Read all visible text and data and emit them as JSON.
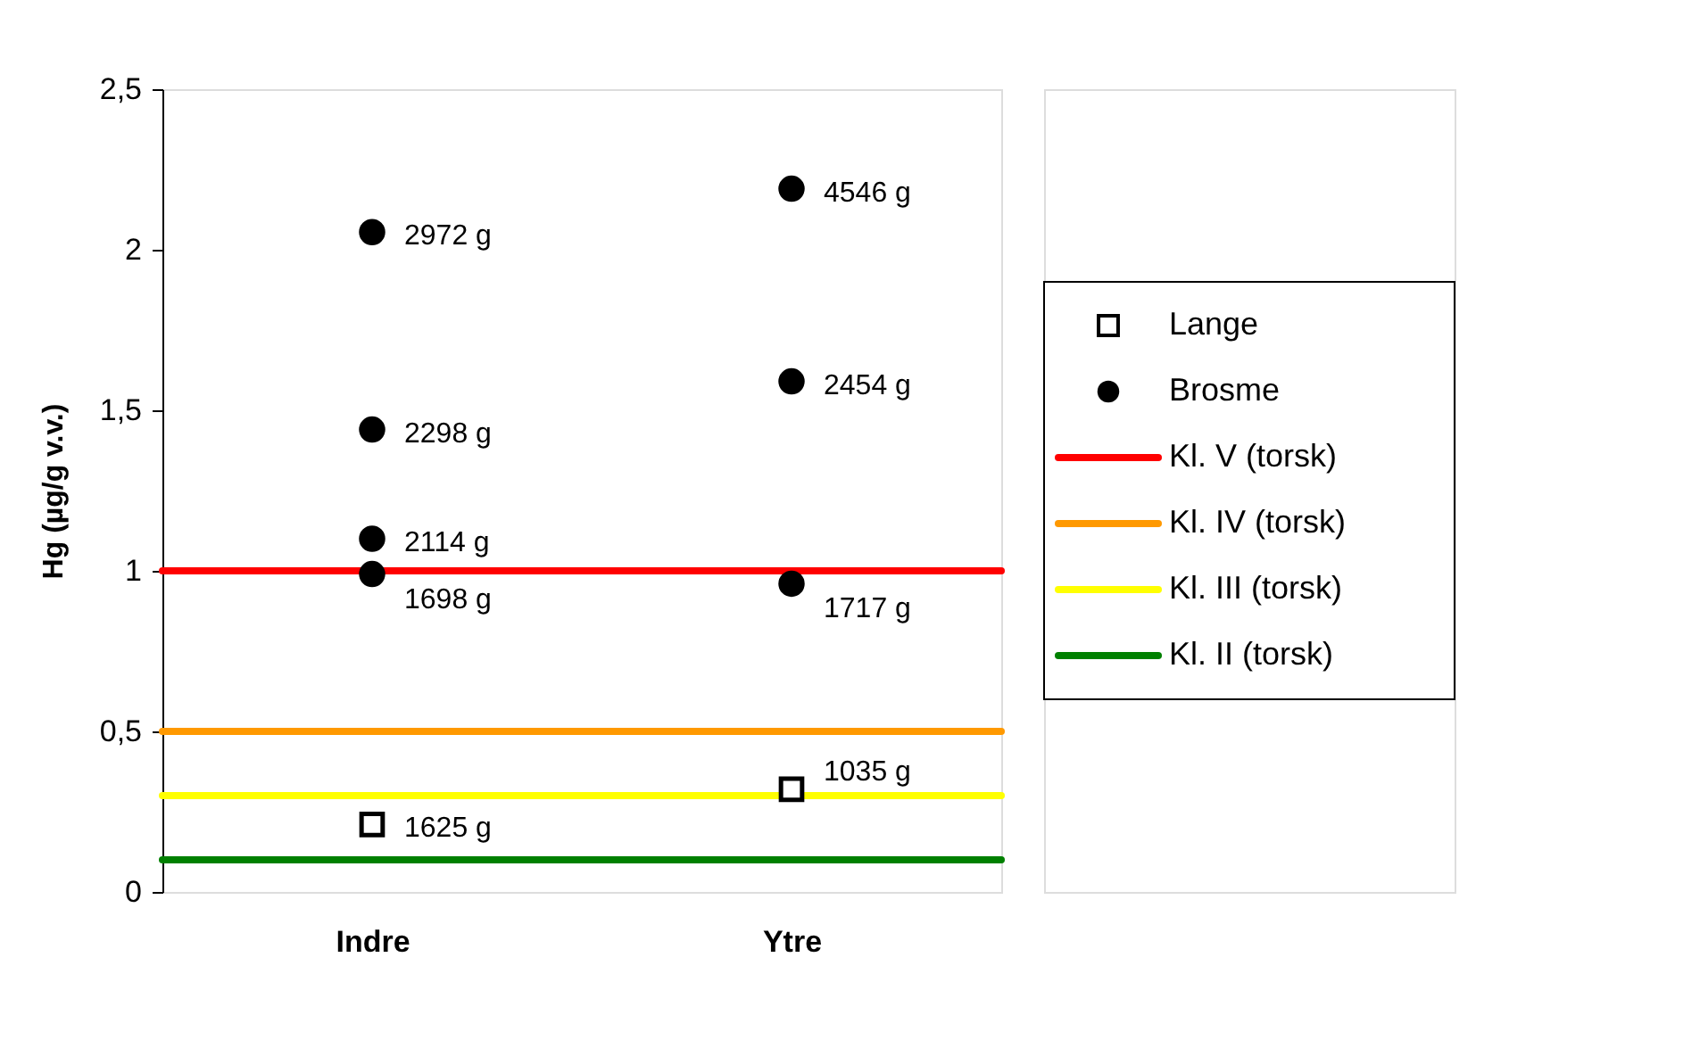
{
  "chart_data": {
    "type": "scatter",
    "ylabel": "Hg (µg/g v.v.)",
    "categories": [
      "Indre",
      "Ytre"
    ],
    "series": [
      {
        "name": "Lange",
        "marker": "square",
        "color": "#000000",
        "x": [
          "Indre",
          "Ytre"
        ],
        "values": [
          0.21,
          0.32
        ]
      },
      {
        "name": "Brosme",
        "marker": "circle",
        "color": "#000000",
        "x": [
          "Indre",
          "Indre",
          "Indre",
          "Indre",
          "Ytre",
          "Ytre",
          "Ytre"
        ],
        "values": [
          2.055,
          1.44,
          1.1,
          0.99,
          2.19,
          1.59,
          0.96
        ]
      }
    ],
    "annotations": [
      {
        "text": "1625 g",
        "x": "Indre",
        "y": 0.21
      },
      {
        "text": "1035 g",
        "x": "Ytre",
        "y": 0.32
      },
      {
        "text": "2972 g",
        "x": "Indre",
        "y": 2.055
      },
      {
        "text": "2298 g",
        "x": "Indre",
        "y": 1.44
      },
      {
        "text": "2114 g",
        "x": "Indre",
        "y": 1.1
      },
      {
        "text": "1698 g",
        "x": "Indre",
        "y": 0.99
      },
      {
        "text": "4546 g",
        "x": "Ytre",
        "y": 2.19
      },
      {
        "text": "2454 g",
        "x": "Ytre",
        "y": 1.59
      },
      {
        "text": "1717 g",
        "x": "Ytre",
        "y": 0.96
      }
    ],
    "ref_lines": [
      {
        "axis": "y",
        "value": 1,
        "label": "Kl. V (torsk)",
        "color": "#ff0000"
      },
      {
        "axis": "y",
        "value": 0.5,
        "label": "Kl. IV (torsk)",
        "color": "#ff9900"
      },
      {
        "axis": "y",
        "value": 0.3,
        "label": "Kl. III (torsk)",
        "color": "#ffff00"
      },
      {
        "axis": "y",
        "value": 0.1,
        "label": "Kl. II (torsk)",
        "color": "#008000"
      }
    ],
    "ylim": [
      0,
      2.5
    ],
    "yticks": [
      {
        "value": 0,
        "label": "0"
      },
      {
        "value": 0.5,
        "label": "0,5"
      },
      {
        "value": 1,
        "label": "1"
      },
      {
        "value": 1.5,
        "label": "1,5"
      },
      {
        "value": 2,
        "label": "2"
      },
      {
        "value": 2.5,
        "label": "2,5"
      }
    ],
    "grid": false,
    "legend": "right"
  }
}
